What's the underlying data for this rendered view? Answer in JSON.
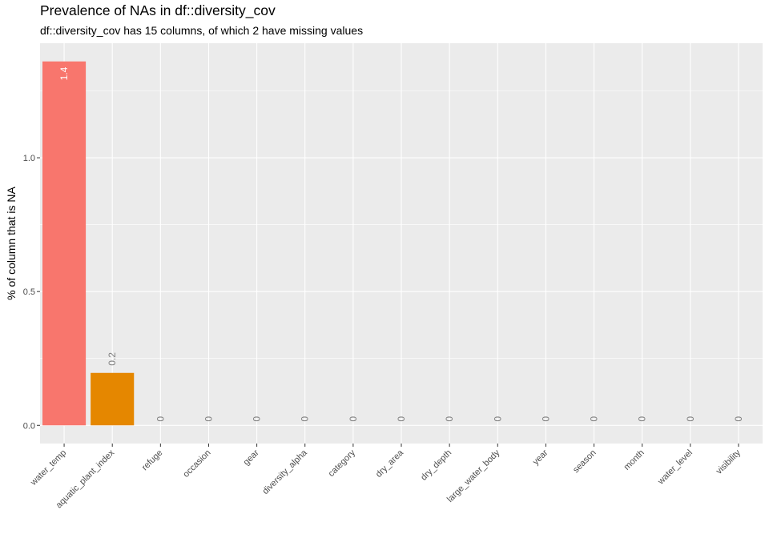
{
  "chart_data": {
    "type": "bar",
    "title": "Prevalence of NAs in df::diversity_cov",
    "subtitle": "df::diversity_cov has 15 columns, of which 2 have missing values",
    "xlabel": "",
    "ylabel": "% of column that is NA",
    "categories": [
      "water_temp",
      "aquatic_plant_index",
      "refuge",
      "occasion",
      "gear",
      "diversity_alpha",
      "category",
      "dry_area",
      "dry_depth",
      "large_water_body",
      "year",
      "season",
      "month",
      "water_level",
      "visibility"
    ],
    "values": [
      1.36,
      0.196,
      0,
      0,
      0,
      0,
      0,
      0,
      0,
      0,
      0,
      0,
      0,
      0,
      0
    ],
    "data_labels": [
      "1.4",
      "0.2",
      "0",
      "0",
      "0",
      "0",
      "0",
      "0",
      "0",
      "0",
      "0",
      "0",
      "0",
      "0",
      "0"
    ],
    "bar_colors": [
      "#F8766D",
      "#E58700",
      "#C99800",
      "#A3A500",
      "#6BB100",
      "#00BA38",
      "#00BF7D",
      "#00C0AF",
      "#00BCD8",
      "#00B0F6",
      "#619CFF",
      "#B983FF",
      "#E76BF3",
      "#FD61D1",
      "#FF67A4"
    ],
    "yticks": [
      0.0,
      0.5,
      1.0
    ],
    "ytick_labels": [
      "0.0",
      "0.5",
      "1.0"
    ],
    "ylim": [
      -0.068,
      1.428
    ],
    "panel_background": "#EBEBEB",
    "grid": true,
    "legend": "none"
  }
}
